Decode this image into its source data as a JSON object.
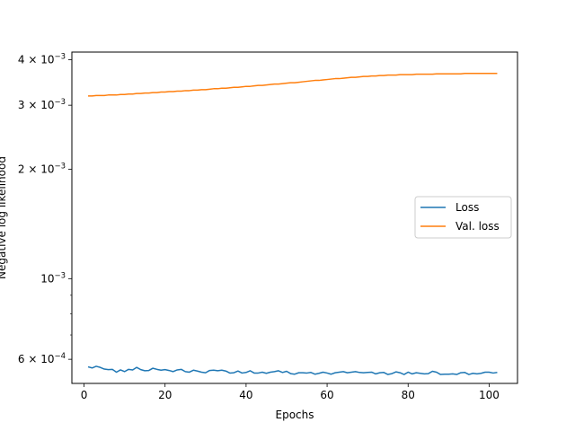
{
  "chart_data": {
    "type": "line",
    "title": "",
    "xlabel": "Epochs",
    "ylabel": "Negative log likelihood",
    "y_scale": "log",
    "xlim": [
      -3,
      107
    ],
    "ylim": [
      0.000515,
      0.0042
    ],
    "grid": false,
    "legend_position": "center-right",
    "x_ticks": [
      {
        "value": 0,
        "label": "0"
      },
      {
        "value": 20,
        "label": "20"
      },
      {
        "value": 40,
        "label": "40"
      },
      {
        "value": 60,
        "label": "60"
      },
      {
        "value": 80,
        "label": "80"
      },
      {
        "value": 100,
        "label": "100"
      }
    ],
    "y_ticks": [
      {
        "value": 0.0006,
        "label_base": "6 × 10",
        "label_exp": "−4"
      },
      {
        "value": 0.001,
        "label_base": "10",
        "label_exp": "−3"
      },
      {
        "value": 0.002,
        "label_base": "2 × 10",
        "label_exp": "−3"
      },
      {
        "value": 0.003,
        "label_base": "3 × 10",
        "label_exp": "−3"
      },
      {
        "value": 0.004,
        "label_base": "4 × 10",
        "label_exp": "−3"
      }
    ],
    "y_minor_ticks": [
      0.0007,
      0.0008,
      0.0009
    ],
    "x_start": 1,
    "series": [
      {
        "name": "Loss",
        "color": "#1f77b4",
        "values": [
          0.000572,
          0.000568,
          0.000574,
          0.00057,
          0.000564,
          0.000562,
          0.000563,
          0.000553,
          0.000561,
          0.000555,
          0.000563,
          0.000561,
          0.00057,
          0.000562,
          0.000558,
          0.000559,
          0.000567,
          0.000563,
          0.00056,
          0.000562,
          0.000559,
          0.000555,
          0.000561,
          0.000563,
          0.000555,
          0.000553,
          0.00056,
          0.000557,
          0.000553,
          0.000551,
          0.000559,
          0.00056,
          0.000558,
          0.00056,
          0.000557,
          0.00055,
          0.000551,
          0.000557,
          0.00055,
          0.000552,
          0.000558,
          0.00055,
          0.00055,
          0.000553,
          0.000549,
          0.000553,
          0.000555,
          0.000558,
          0.000552,
          0.000556,
          0.000548,
          0.000546,
          0.000551,
          0.000551,
          0.00055,
          0.000552,
          0.000546,
          0.000549,
          0.000553,
          0.00055,
          0.000546,
          0.000551,
          0.000553,
          0.000555,
          0.000551,
          0.000553,
          0.000555,
          0.000552,
          0.000551,
          0.000552,
          0.000553,
          0.000547,
          0.000551,
          0.000552,
          0.000545,
          0.000548,
          0.000554,
          0.000551,
          0.000545,
          0.000553,
          0.000547,
          0.000551,
          0.000549,
          0.000547,
          0.000548,
          0.000556,
          0.000553,
          0.000545,
          0.000546,
          0.000546,
          0.000547,
          0.000545,
          0.000551,
          0.000552,
          0.000545,
          0.000549,
          0.000547,
          0.000549,
          0.000553,
          0.000553,
          0.00055,
          0.000552
        ]
      },
      {
        "name": "Val. loss",
        "color": "#ff7f0e",
        "values": [
          0.00318,
          0.00318,
          0.00319,
          0.00319,
          0.00319,
          0.0032,
          0.0032,
          0.0032,
          0.00321,
          0.00321,
          0.00322,
          0.00322,
          0.00323,
          0.00323,
          0.00324,
          0.00324,
          0.00325,
          0.00325,
          0.00326,
          0.00326,
          0.00327,
          0.00327,
          0.00328,
          0.00328,
          0.00329,
          0.00329,
          0.0033,
          0.0033,
          0.00331,
          0.00331,
          0.00332,
          0.00333,
          0.00333,
          0.00334,
          0.00334,
          0.00335,
          0.00336,
          0.00336,
          0.00337,
          0.00338,
          0.00338,
          0.00339,
          0.0034,
          0.0034,
          0.00341,
          0.00342,
          0.00343,
          0.00343,
          0.00344,
          0.00345,
          0.00346,
          0.00346,
          0.00347,
          0.00348,
          0.00349,
          0.0035,
          0.00351,
          0.00351,
          0.00352,
          0.00353,
          0.00354,
          0.00355,
          0.00355,
          0.00356,
          0.00357,
          0.00358,
          0.00358,
          0.00359,
          0.0036,
          0.0036,
          0.00361,
          0.00361,
          0.00362,
          0.00362,
          0.00363,
          0.00363,
          0.00363,
          0.00364,
          0.00364,
          0.00364,
          0.00364,
          0.00365,
          0.00365,
          0.00365,
          0.00365,
          0.00365,
          0.00366,
          0.00366,
          0.00366,
          0.00366,
          0.00366,
          0.00366,
          0.00366,
          0.00367,
          0.00367,
          0.00367,
          0.00367,
          0.00367,
          0.00367,
          0.00367,
          0.00367,
          0.00367
        ]
      }
    ]
  }
}
